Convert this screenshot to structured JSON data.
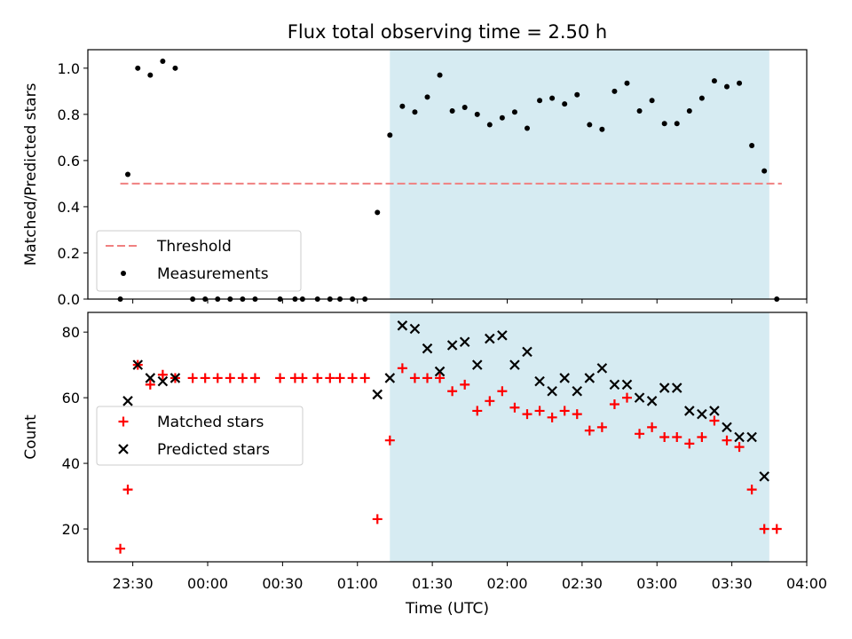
{
  "title": "Flux total observing time = 2.50 h",
  "xlabel": "Time (UTC)",
  "chart_data": [
    {
      "type": "scatter",
      "ylabel": "Matched/Predicted stars",
      "ylim": [
        0,
        1.08
      ],
      "yticks": [
        "0.0",
        "0.2",
        "0.4",
        "0.6",
        "0.8",
        "1.0"
      ],
      "legend_placement": "lower-left",
      "threshold": {
        "name": "Threshold",
        "value": 0.5,
        "x_start": "23:25",
        "x_end": "03:50",
        "color": "#f08080"
      },
      "shaded_span": {
        "x_start": "01:13",
        "x_end": "03:45",
        "color": "#add8e6"
      },
      "series": [
        {
          "name": "Measurements",
          "color": "#000000",
          "marker": "dot",
          "points": [
            [
              "23:25",
              0.0
            ],
            [
              "23:28",
              0.54
            ],
            [
              "23:32",
              1.0
            ],
            [
              "23:37",
              0.97
            ],
            [
              "23:42",
              1.03
            ],
            [
              "23:47",
              1.0
            ],
            [
              "23:54",
              0.0
            ],
            [
              "23:59",
              0.0
            ],
            [
              "00:04",
              0.0
            ],
            [
              "00:09",
              0.0
            ],
            [
              "00:14",
              0.0
            ],
            [
              "00:19",
              0.0
            ],
            [
              "00:29",
              0.0
            ],
            [
              "00:35",
              0.0
            ],
            [
              "00:38",
              0.0
            ],
            [
              "00:44",
              0.0
            ],
            [
              "00:49",
              0.0
            ],
            [
              "00:53",
              0.0
            ],
            [
              "00:58",
              0.0
            ],
            [
              "01:03",
              0.0
            ],
            [
              "01:08",
              0.375
            ],
            [
              "01:13",
              0.71
            ],
            [
              "01:18",
              0.835
            ],
            [
              "01:23",
              0.81
            ],
            [
              "01:28",
              0.875
            ],
            [
              "01:33",
              0.97
            ],
            [
              "01:38",
              0.815
            ],
            [
              "01:43",
              0.83
            ],
            [
              "01:48",
              0.8
            ],
            [
              "01:53",
              0.755
            ],
            [
              "01:58",
              0.785
            ],
            [
              "02:03",
              0.81
            ],
            [
              "02:08",
              0.74
            ],
            [
              "02:13",
              0.86
            ],
            [
              "02:18",
              0.87
            ],
            [
              "02:23",
              0.845
            ],
            [
              "02:28",
              0.885
            ],
            [
              "02:33",
              0.755
            ],
            [
              "02:38",
              0.735
            ],
            [
              "02:43",
              0.9
            ],
            [
              "02:48",
              0.935
            ],
            [
              "02:53",
              0.815
            ],
            [
              "02:58",
              0.86
            ],
            [
              "03:03",
              0.76
            ],
            [
              "03:08",
              0.76
            ],
            [
              "03:13",
              0.815
            ],
            [
              "03:18",
              0.87
            ],
            [
              "03:23",
              0.945
            ],
            [
              "03:28",
              0.92
            ],
            [
              "03:33",
              0.935
            ],
            [
              "03:38",
              0.665
            ],
            [
              "03:43",
              0.555
            ],
            [
              "03:48",
              0.0
            ]
          ]
        }
      ]
    },
    {
      "type": "scatter",
      "ylabel": "Count",
      "ylim": [
        10,
        86
      ],
      "yticks": [
        "20",
        "40",
        "60",
        "80"
      ],
      "legend_placement": "center-left",
      "shaded_span": {
        "x_start": "01:13",
        "x_end": "03:45",
        "color": "#add8e6"
      },
      "x_range": [
        "23:12",
        "04:00"
      ],
      "xticks": [
        "23:30",
        "00:00",
        "00:30",
        "01:00",
        "01:30",
        "02:00",
        "02:30",
        "03:00",
        "03:30",
        "04:00"
      ],
      "series": [
        {
          "name": "Matched stars",
          "color": "#ff0000",
          "marker": "plus",
          "points": [
            [
              "23:25",
              14
            ],
            [
              "23:28",
              32
            ],
            [
              "23:32",
              70
            ],
            [
              "23:37",
              64
            ],
            [
              "23:42",
              67
            ],
            [
              "23:47",
              66
            ],
            [
              "23:54",
              66
            ],
            [
              "23:59",
              66
            ],
            [
              "00:04",
              66
            ],
            [
              "00:09",
              66
            ],
            [
              "00:14",
              66
            ],
            [
              "00:19",
              66
            ],
            [
              "00:29",
              66
            ],
            [
              "00:35",
              66
            ],
            [
              "00:38",
              66
            ],
            [
              "00:44",
              66
            ],
            [
              "00:49",
              66
            ],
            [
              "00:53",
              66
            ],
            [
              "00:58",
              66
            ],
            [
              "01:03",
              66
            ],
            [
              "01:08",
              23
            ],
            [
              "01:13",
              47
            ],
            [
              "01:18",
              69
            ],
            [
              "01:23",
              66
            ],
            [
              "01:28",
              66
            ],
            [
              "01:33",
              66
            ],
            [
              "01:38",
              62
            ],
            [
              "01:43",
              64
            ],
            [
              "01:48",
              56
            ],
            [
              "01:53",
              59
            ],
            [
              "01:58",
              62
            ],
            [
              "02:03",
              57
            ],
            [
              "02:08",
              55
            ],
            [
              "02:13",
              56
            ],
            [
              "02:18",
              54
            ],
            [
              "02:23",
              56
            ],
            [
              "02:28",
              55
            ],
            [
              "02:33",
              50
            ],
            [
              "02:38",
              51
            ],
            [
              "02:43",
              58
            ],
            [
              "02:48",
              60
            ],
            [
              "02:53",
              49
            ],
            [
              "02:58",
              51
            ],
            [
              "03:03",
              48
            ],
            [
              "03:08",
              48
            ],
            [
              "03:13",
              46
            ],
            [
              "03:18",
              48
            ],
            [
              "03:23",
              53
            ],
            [
              "03:28",
              47
            ],
            [
              "03:33",
              45
            ],
            [
              "03:38",
              32
            ],
            [
              "03:43",
              20
            ],
            [
              "03:48",
              20
            ]
          ]
        },
        {
          "name": "Predicted stars",
          "color": "#000000",
          "marker": "x",
          "points": [
            [
              "23:28",
              59
            ],
            [
              "23:32",
              70
            ],
            [
              "23:37",
              66
            ],
            [
              "23:42",
              65
            ],
            [
              "23:47",
              66
            ],
            [
              "01:08",
              61
            ],
            [
              "01:13",
              66
            ],
            [
              "01:18",
              82
            ],
            [
              "01:23",
              81
            ],
            [
              "01:28",
              75
            ],
            [
              "01:33",
              68
            ],
            [
              "01:38",
              76
            ],
            [
              "01:43",
              77
            ],
            [
              "01:48",
              70
            ],
            [
              "01:53",
              78
            ],
            [
              "01:58",
              79
            ],
            [
              "02:03",
              70
            ],
            [
              "02:08",
              74
            ],
            [
              "02:13",
              65
            ],
            [
              "02:18",
              62
            ],
            [
              "02:23",
              66
            ],
            [
              "02:28",
              62
            ],
            [
              "02:33",
              66
            ],
            [
              "02:38",
              69
            ],
            [
              "02:43",
              64
            ],
            [
              "02:48",
              64
            ],
            [
              "02:53",
              60
            ],
            [
              "02:58",
              59
            ],
            [
              "03:03",
              63
            ],
            [
              "03:08",
              63
            ],
            [
              "03:13",
              56
            ],
            [
              "03:18",
              55
            ],
            [
              "03:23",
              56
            ],
            [
              "03:28",
              51
            ],
            [
              "03:33",
              48
            ],
            [
              "03:38",
              48
            ],
            [
              "03:43",
              36
            ]
          ]
        }
      ]
    }
  ]
}
